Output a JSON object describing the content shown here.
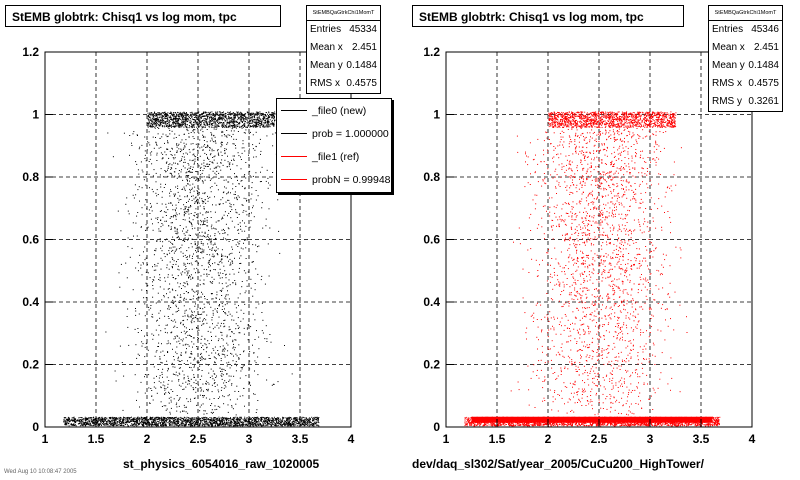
{
  "left": {
    "title": "StEMB globtrk: Chisq1 vs log mom, tpc",
    "stats": {
      "name": "StEMBQaGtrkChi1MomT",
      "rows": [
        {
          "label": "Entries",
          "value": "45334"
        },
        {
          "label": "Mean x",
          "value": "2.451"
        },
        {
          "label": "Mean y",
          "value": "0.1484"
        },
        {
          "label": "RMS x",
          "value": "0.4575"
        }
      ]
    },
    "legend": [
      {
        "label": "_file0 (new)",
        "color": "#000000"
      },
      {
        "label": "prob = 1.000000",
        "color": "#000000"
      },
      {
        "label": "_file1 (ref)",
        "color": "#ff0000"
      },
      {
        "label": "probN = 0.999486",
        "color": "#ff0000"
      }
    ],
    "caption": "st_physics_6054016_raw_1020005",
    "footer": "Wed Aug 10 10:08:47 2005"
  },
  "right": {
    "title": "StEMB globtrk: Chisq1 vs log mom, tpc",
    "stats": {
      "name": "StEMBQaGtrkChi1MomT",
      "rows": [
        {
          "label": "Entries",
          "value": "45346"
        },
        {
          "label": "Mean x",
          "value": "2.451"
        },
        {
          "label": "Mean y",
          "value": "0.1484"
        },
        {
          "label": "RMS x",
          "value": "0.4575"
        },
        {
          "label": "RMS y",
          "value": "0.3261"
        }
      ]
    },
    "caption": "dev/daq_sl302/Sat/year_2005/CuCu200_HighTower/"
  },
  "chart_data": [
    {
      "type": "scatter",
      "title": "StEMB globtrk: Chisq1 vs log mom, tpc",
      "xlim": [
        1,
        4
      ],
      "ylim": [
        0,
        1.2
      ],
      "xticks": [
        "1",
        "1.5",
        "2",
        "2.5",
        "3",
        "3.5",
        "4"
      ],
      "yticks": [
        "0",
        "0.2",
        "0.4",
        "0.6",
        "0.8",
        "1",
        "1.2"
      ],
      "grid": true,
      "color": "#000000",
      "points_note": "dense band at y≈0.02 for x 1.2–3.6, dense band at y≈1.0 for x 2.0–3.3, sparse fill between",
      "series": [
        {
          "values": [
            [
              1.3,
              0.02
            ],
            [
              2.0,
              0.02
            ],
            [
              2.5,
              0.02
            ],
            [
              3.0,
              0.02
            ],
            [
              3.5,
              0.02
            ],
            [
              2.2,
              1.0
            ],
            [
              2.6,
              1.0
            ],
            [
              3.0,
              1.0
            ],
            [
              2.5,
              0.5
            ]
          ]
        }
      ]
    },
    {
      "type": "scatter",
      "title": "StEMB globtrk: Chisq1 vs log mom, tpc",
      "xlim": [
        1,
        4
      ],
      "ylim": [
        0,
        1.2
      ],
      "xticks": [
        "1",
        "1.5",
        "2",
        "2.5",
        "3",
        "3.5",
        "4"
      ],
      "yticks": [
        "0",
        "0.2",
        "0.4",
        "0.6",
        "0.8",
        "1",
        "1.2"
      ],
      "grid": true,
      "color": "#ff0000",
      "points_note": "dense band at y≈0.02 for x 1.2–3.6, dense band at y≈1.0 for x 2.0–3.3, sparse fill between",
      "series": [
        {
          "values": [
            [
              1.3,
              0.02
            ],
            [
              2.0,
              0.02
            ],
            [
              2.5,
              0.02
            ],
            [
              3.0,
              0.02
            ],
            [
              3.5,
              0.02
            ],
            [
              2.2,
              1.0
            ],
            [
              2.6,
              1.0
            ],
            [
              3.0,
              1.0
            ],
            [
              2.5,
              0.5
            ]
          ]
        }
      ]
    }
  ]
}
